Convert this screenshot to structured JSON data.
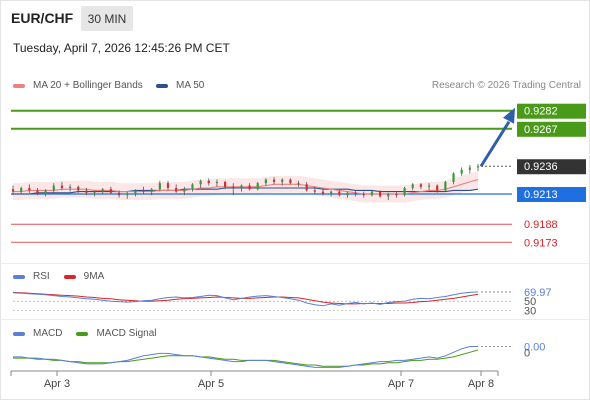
{
  "header": {
    "symbol": "EUR/CHF",
    "timeframe": "30 MIN",
    "datetime": "Tuesday, April 7, 2026 12:45:26 PM CET"
  },
  "legend": {
    "ma20_label": "MA 20 + Bollinger Bands",
    "ma50_label": "MA 50",
    "ma20_color": "#f08080",
    "ma50_color": "#2d4f8e",
    "copyright": "Research © 2026 Trading Central"
  },
  "rsi_legend": {
    "rsi_label": "RSI",
    "ma_label": "9MA",
    "rsi_color": "#5b7fd6",
    "ma_color": "#d9262a"
  },
  "macd_legend": {
    "macd_label": "MACD",
    "signal_label": "MACD Signal",
    "macd_color": "#5b7fd6",
    "signal_color": "#4a9a1a"
  },
  "chart_data": [
    {
      "type": "candlestick",
      "panel": "price",
      "x_labels": [
        "Apr 3",
        "Apr 5",
        "Apr 7",
        "Apr 8"
      ],
      "ylim": [
        0.916,
        0.9295
      ],
      "candles": [
        [
          0.9217,
          0.922,
          0.9212,
          0.9215
        ],
        [
          0.9215,
          0.9219,
          0.9213,
          0.9218
        ],
        [
          0.9218,
          0.9221,
          0.9214,
          0.9216
        ],
        [
          0.9216,
          0.9218,
          0.9212,
          0.9213
        ],
        [
          0.9213,
          0.9217,
          0.9211,
          0.9216
        ],
        [
          0.9216,
          0.9222,
          0.9214,
          0.922
        ],
        [
          0.922,
          0.9223,
          0.9216,
          0.9218
        ],
        [
          0.9218,
          0.9221,
          0.9215,
          0.9219
        ],
        [
          0.9219,
          0.922,
          0.9214,
          0.9216
        ],
        [
          0.9216,
          0.9218,
          0.9212,
          0.9214
        ],
        [
          0.9214,
          0.9216,
          0.9211,
          0.9215
        ],
        [
          0.9215,
          0.9218,
          0.9213,
          0.9217
        ],
        [
          0.9217,
          0.9219,
          0.9213,
          0.9214
        ],
        [
          0.9214,
          0.9216,
          0.921,
          0.9212
        ],
        [
          0.9212,
          0.9215,
          0.9209,
          0.9213
        ],
        [
          0.9213,
          0.9217,
          0.9211,
          0.9216
        ],
        [
          0.9216,
          0.9219,
          0.9213,
          0.9215
        ],
        [
          0.9215,
          0.9218,
          0.9212,
          0.9217
        ],
        [
          0.9217,
          0.9224,
          0.9215,
          0.9222
        ],
        [
          0.9222,
          0.9224,
          0.9216,
          0.9218
        ],
        [
          0.9218,
          0.9221,
          0.9214,
          0.9215
        ],
        [
          0.9215,
          0.9219,
          0.9212,
          0.9217
        ],
        [
          0.9217,
          0.9222,
          0.9215,
          0.9221
        ],
        [
          0.9221,
          0.9225,
          0.9218,
          0.9224
        ],
        [
          0.9224,
          0.9226,
          0.922,
          0.9222
        ],
        [
          0.9222,
          0.9225,
          0.9219,
          0.9223
        ],
        [
          0.9223,
          0.9224,
          0.9217,
          0.9219
        ],
        [
          0.9219,
          0.9222,
          0.9212,
          0.9218
        ],
        [
          0.9218,
          0.9221,
          0.9215,
          0.922
        ],
        [
          0.922,
          0.9222,
          0.9216,
          0.9217
        ],
        [
          0.9217,
          0.9223,
          0.9216,
          0.9222
        ],
        [
          0.9222,
          0.9226,
          0.922,
          0.9225
        ],
        [
          0.9225,
          0.9227,
          0.9221,
          0.9223
        ],
        [
          0.9223,
          0.9226,
          0.922,
          0.9225
        ],
        [
          0.9225,
          0.9226,
          0.9221,
          0.9222
        ],
        [
          0.9222,
          0.9224,
          0.9219,
          0.9221
        ],
        [
          0.9221,
          0.9223,
          0.9215,
          0.9216
        ],
        [
          0.9216,
          0.9219,
          0.9213,
          0.9215
        ],
        [
          0.9215,
          0.9217,
          0.9212,
          0.9213
        ],
        [
          0.9213,
          0.9216,
          0.9211,
          0.9215
        ],
        [
          0.9215,
          0.9216,
          0.9211,
          0.9212
        ],
        [
          0.9212,
          0.9215,
          0.921,
          0.9214
        ],
        [
          0.9214,
          0.9216,
          0.9211,
          0.9213
        ],
        [
          0.9213,
          0.9215,
          0.921,
          0.9212
        ],
        [
          0.9212,
          0.9216,
          0.9211,
          0.9215
        ],
        [
          0.9215,
          0.9216,
          0.921,
          0.9211
        ],
        [
          0.9211,
          0.9214,
          0.9208,
          0.9213
        ],
        [
          0.9213,
          0.9215,
          0.921,
          0.9212
        ],
        [
          0.9212,
          0.9219,
          0.9211,
          0.9218
        ],
        [
          0.9218,
          0.9222,
          0.9216,
          0.9221
        ],
        [
          0.9221,
          0.9222,
          0.9217,
          0.9219
        ],
        [
          0.9219,
          0.9222,
          0.9216,
          0.922
        ],
        [
          0.922,
          0.9221,
          0.9214,
          0.9216
        ],
        [
          0.9216,
          0.9224,
          0.9215,
          0.9223
        ],
        [
          0.9223,
          0.9231,
          0.9221,
          0.923
        ],
        [
          0.923,
          0.9235,
          0.9228,
          0.9233
        ],
        [
          0.9233,
          0.9237,
          0.923,
          0.9235
        ],
        [
          0.9235,
          0.9238,
          0.9232,
          0.9236
        ]
      ],
      "ma20": [
        0.9215,
        0.9215,
        0.9216,
        0.9216,
        0.9216,
        0.9216,
        0.9217,
        0.9217,
        0.9217,
        0.9217,
        0.9216,
        0.9216,
        0.9216,
        0.9215,
        0.9215,
        0.9215,
        0.9215,
        0.9215,
        0.9216,
        0.9216,
        0.9216,
        0.9216,
        0.9217,
        0.9218,
        0.9218,
        0.9219,
        0.9219,
        0.9219,
        0.9219,
        0.9219,
        0.9219,
        0.922,
        0.9221,
        0.9221,
        0.9221,
        0.9221,
        0.922,
        0.9219,
        0.9218,
        0.9217,
        0.9216,
        0.9215,
        0.9214,
        0.9213,
        0.9213,
        0.9213,
        0.9213,
        0.9213,
        0.9213,
        0.9214,
        0.9215,
        0.9216,
        0.9216,
        0.9217,
        0.9219,
        0.9221,
        0.9223,
        0.9225
      ],
      "bb_width": 0.0007,
      "ma50": [
        0.9213,
        0.9213,
        0.9213,
        0.9214,
        0.9214,
        0.9214,
        0.9214,
        0.9214,
        0.9215,
        0.9215,
        0.9215,
        0.9215,
        0.9215,
        0.9215,
        0.9215,
        0.9216,
        0.9216,
        0.9216,
        0.9216,
        0.9216,
        0.9216,
        0.9217,
        0.9217,
        0.9217,
        0.9217,
        0.9217,
        0.9218,
        0.9218,
        0.9218,
        0.9218,
        0.9218,
        0.9218,
        0.9218,
        0.9218,
        0.9218,
        0.9218,
        0.9218,
        0.9218,
        0.9217,
        0.9217,
        0.9217,
        0.9217,
        0.9216,
        0.9216,
        0.9216,
        0.9215,
        0.9215,
        0.9215,
        0.9215,
        0.9215,
        0.9215,
        0.9215,
        0.9215,
        0.9215,
        0.9216,
        0.9216,
        0.9216,
        0.9217
      ],
      "levels": [
        {
          "value": 0.9282,
          "label": "0.9282",
          "color": "#4a9a1a",
          "style": "resistance"
        },
        {
          "value": 0.9267,
          "label": "0.9267",
          "color": "#4a9a1a",
          "style": "resistance"
        },
        {
          "value": 0.9236,
          "label": "0.9236",
          "color": "#333333",
          "style": "last"
        },
        {
          "value": 0.9213,
          "label": "0.9213",
          "color": "#1f6fe0",
          "style": "pivot"
        },
        {
          "value": 0.9188,
          "label": "0.9188",
          "color": "#d9262a",
          "style": "support"
        },
        {
          "value": 0.9173,
          "label": "0.9173",
          "color": "#d9262a",
          "style": "support"
        }
      ],
      "arrow": {
        "from": 0.9236,
        "to": 0.9282
      }
    },
    {
      "type": "line",
      "panel": "rsi",
      "ylim": [
        20,
        85
      ],
      "ticks": [
        {
          "value": 69.97,
          "label": "69.97"
        },
        {
          "value": 50,
          "label": "50"
        },
        {
          "value": 30,
          "label": "30"
        }
      ],
      "rsi": [
        68,
        67,
        66,
        65,
        64,
        62,
        60,
        59,
        57,
        55,
        54,
        52,
        50,
        49,
        48,
        49,
        51,
        52,
        55,
        58,
        59,
        57,
        58,
        60,
        63,
        62,
        57,
        53,
        56,
        59,
        61,
        62,
        60,
        58,
        55,
        52,
        46,
        42,
        40,
        44,
        41,
        45,
        47,
        44,
        46,
        43,
        47,
        49,
        50,
        54,
        56,
        55,
        58,
        60,
        64,
        67,
        69,
        70
      ],
      "ma": [
        69,
        68,
        67,
        66,
        65,
        64,
        63,
        62,
        61,
        59,
        58,
        56,
        55,
        53,
        52,
        51,
        50,
        50,
        51,
        52,
        54,
        55,
        56,
        57,
        58,
        59,
        58,
        57,
        56,
        56,
        57,
        58,
        59,
        59,
        58,
        57,
        54,
        51,
        48,
        46,
        45,
        44,
        44,
        45,
        45,
        45,
        45,
        46,
        46,
        47,
        49,
        50,
        52,
        54,
        56,
        59,
        62,
        65
      ]
    },
    {
      "type": "line",
      "panel": "macd",
      "ticks": [
        {
          "value": 0.0,
          "label": "0.00"
        },
        {
          "value": -0.0005,
          "label": "0"
        }
      ],
      "ylim": [
        -0.0022,
        0.0003
      ],
      "macd": [
        -0.0009,
        -0.0009,
        -0.001,
        -0.001,
        -0.0011,
        -0.0011,
        -0.0012,
        -0.0013,
        -0.0014,
        -0.0015,
        -0.0015,
        -0.0015,
        -0.0014,
        -0.0013,
        -0.0012,
        -0.001,
        -0.0008,
        -0.0007,
        -0.0006,
        -0.0006,
        -0.0007,
        -0.0008,
        -0.0008,
        -0.0009,
        -0.001,
        -0.0011,
        -0.0012,
        -0.0013,
        -0.0013,
        -0.0012,
        -0.0012,
        -0.0012,
        -0.0013,
        -0.0014,
        -0.0015,
        -0.0016,
        -0.0017,
        -0.0018,
        -0.0018,
        -0.0018,
        -0.0018,
        -0.0017,
        -0.0016,
        -0.0015,
        -0.0014,
        -0.0013,
        -0.0013,
        -0.0012,
        -0.0012,
        -0.0011,
        -0.001,
        -0.0009,
        -0.001,
        -0.0008,
        -0.0005,
        -0.0002,
        0.0,
        0.0
      ],
      "signal": [
        -0.001,
        -0.001,
        -0.001,
        -0.0011,
        -0.0011,
        -0.0012,
        -0.0012,
        -0.0013,
        -0.0013,
        -0.0014,
        -0.0014,
        -0.0014,
        -0.0014,
        -0.0013,
        -0.0013,
        -0.0012,
        -0.0011,
        -0.001,
        -0.0009,
        -0.0008,
        -0.0008,
        -0.0008,
        -0.0008,
        -0.0009,
        -0.0009,
        -0.001,
        -0.0011,
        -0.0011,
        -0.0012,
        -0.0012,
        -0.0012,
        -0.0012,
        -0.0012,
        -0.0013,
        -0.0014,
        -0.0015,
        -0.0016,
        -0.0016,
        -0.0017,
        -0.0017,
        -0.0017,
        -0.0017,
        -0.0016,
        -0.0016,
        -0.0015,
        -0.0015,
        -0.0014,
        -0.0014,
        -0.0013,
        -0.0012,
        -0.0012,
        -0.0011,
        -0.0011,
        -0.001,
        -0.0009,
        -0.0007,
        -0.0005,
        -0.0003
      ]
    }
  ]
}
